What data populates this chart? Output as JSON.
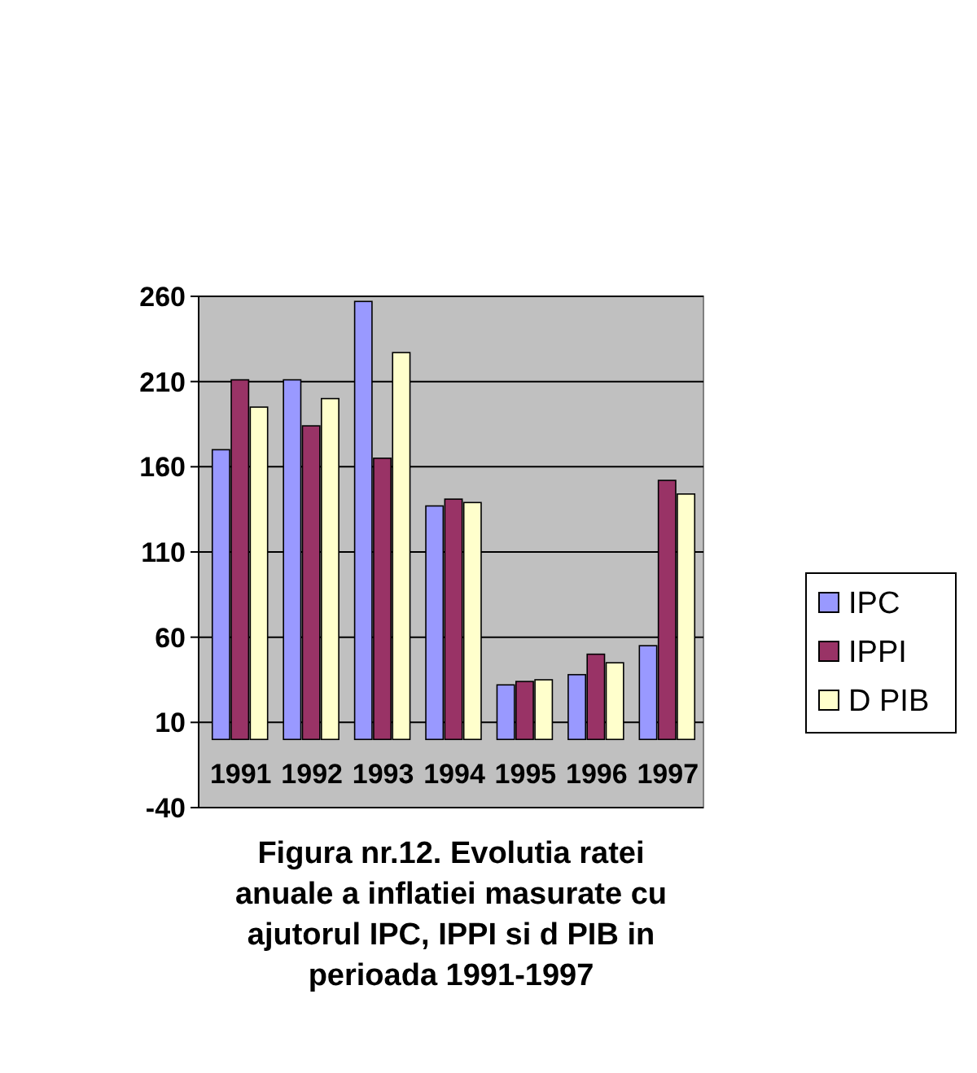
{
  "chart_data": {
    "type": "bar",
    "title": "Figura nr.12. Evolutia ratei anuale a inflatiei masurate cu ajutorul IPC, IPPI si d PIB in perioada 1991-1997",
    "categories": [
      "1991",
      "1992",
      "1993",
      "1994",
      "1995",
      "1996",
      "1997"
    ],
    "series": [
      {
        "name": "IPC",
        "color": "#9999ff",
        "values": [
          170,
          211,
          257,
          137,
          32,
          38,
          55
        ]
      },
      {
        "name": "IPPI",
        "color": "#993366",
        "values": [
          211,
          184,
          165,
          141,
          34,
          50,
          152
        ]
      },
      {
        "name": "D PIB",
        "color": "#ffffcc",
        "values": [
          195,
          200,
          227,
          139,
          35,
          45,
          144
        ]
      }
    ],
    "ylim": [
      -40,
      260
    ],
    "yticks": [
      -40,
      10,
      60,
      110,
      160,
      210,
      260
    ],
    "grid": "y",
    "legend": "right"
  }
}
